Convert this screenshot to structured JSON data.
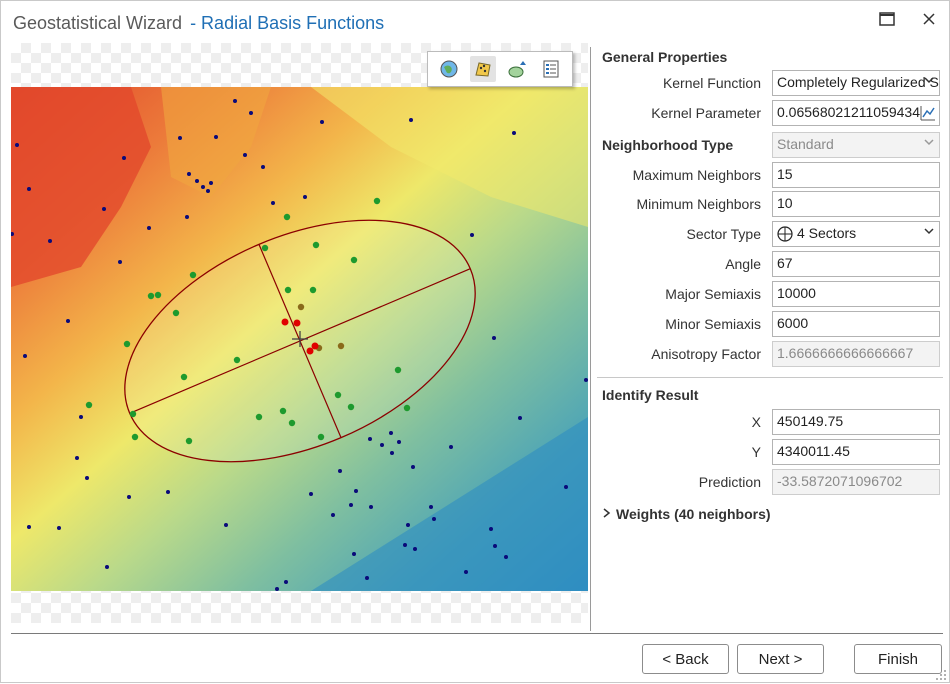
{
  "window": {
    "title": "Geostatistical Wizard",
    "subtitle": "- Radial Basis Functions",
    "maximize_icon": "maximize-icon",
    "close_icon": "close-icon"
  },
  "map_toolbar": {
    "icons": [
      "globe-icon",
      "data-points-icon",
      "ellipse-search-icon",
      "legend-list-icon"
    ]
  },
  "general_properties": {
    "title": "General Properties",
    "kernel_function_label": "Kernel Function",
    "kernel_function_value": "Completely Regularized Spline",
    "kernel_parameter_label": "Kernel Parameter",
    "kernel_parameter_value": "0.06568021211059434",
    "neighborhood_type_label": "Neighborhood Type",
    "neighborhood_type_value": "Standard",
    "max_neighbors_label": "Maximum Neighbors",
    "max_neighbors_value": "15",
    "min_neighbors_label": "Minimum Neighbors",
    "min_neighbors_value": "10",
    "sector_type_label": "Sector Type",
    "sector_type_value": "4 Sectors",
    "angle_label": "Angle",
    "angle_value": "67",
    "major_semiaxis_label": "Major Semiaxis",
    "major_semiaxis_value": "10000",
    "minor_semiaxis_label": "Minor Semiaxis",
    "minor_semiaxis_value": "6000",
    "anisotropy_label": "Anisotropy Factor",
    "anisotropy_value": "1.6666666666666667"
  },
  "identify_result": {
    "title": "Identify Result",
    "x_label": "X",
    "x_value": "450149.75",
    "y_label": "Y",
    "y_value": "4340011.45",
    "prediction_label": "Prediction",
    "prediction_value": "-33.5872071096702"
  },
  "weights": {
    "label": "Weights (40 neighbors)"
  },
  "buttons": {
    "back": "< Back",
    "next": "Next >",
    "finish": "Finish"
  },
  "colors": {
    "title_accent": "#1f6fb5",
    "selected_point": "#e00000",
    "neighbor_point": "#1e9a2e",
    "other_point": "#0a0a7a",
    "ellipse": "#8b0000"
  }
}
